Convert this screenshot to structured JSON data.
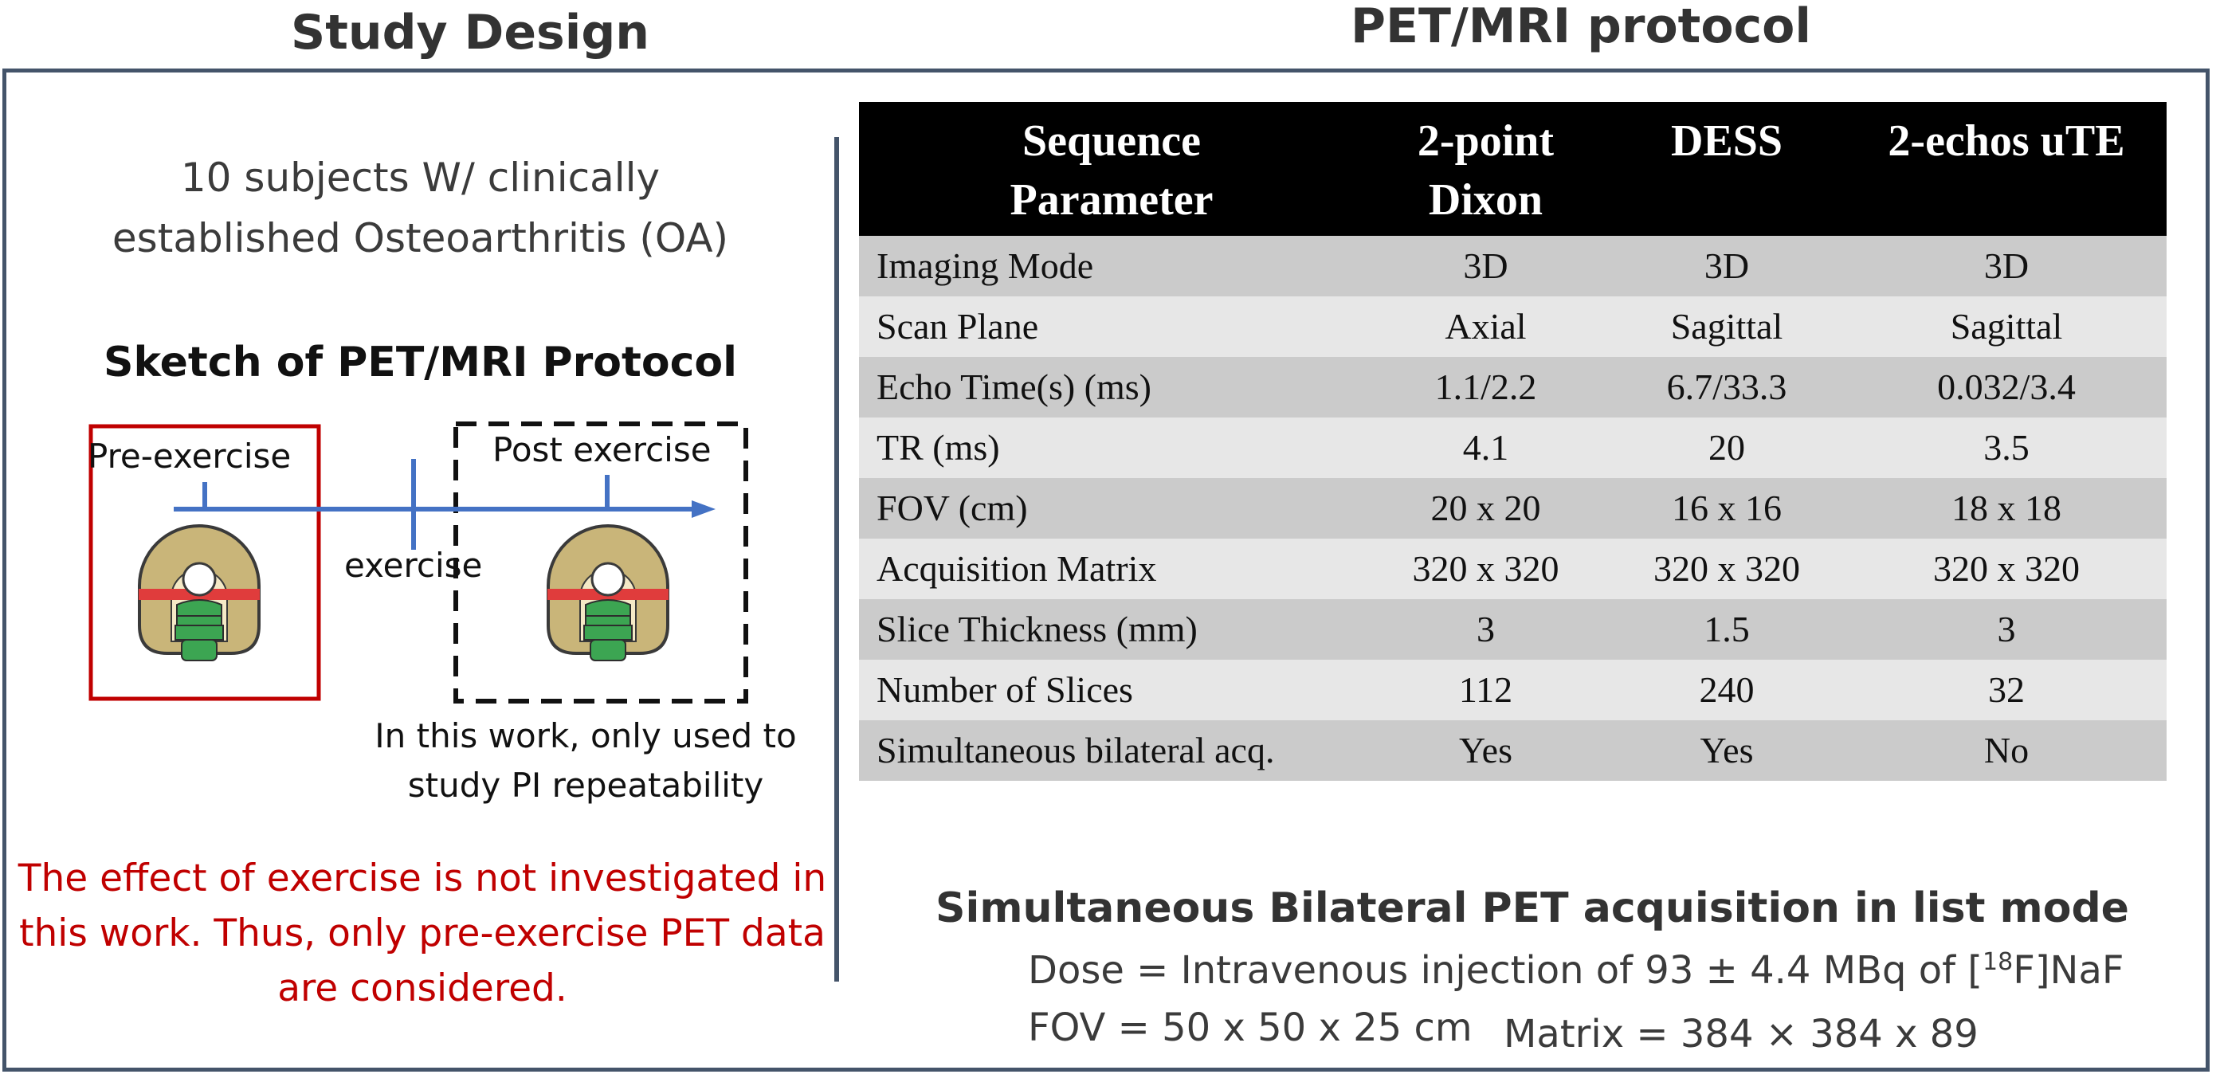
{
  "left_panel": {
    "heading": "Study Design",
    "subjects_line1": "10 subjects W/ clinically",
    "subjects_line2": "established Osteoarthritis (OA)",
    "sketch_title": "Sketch of PET/MRI Protocol",
    "pre_label": "Pre-exercise",
    "post_label": "Post exercise",
    "exercise_label": "exercise",
    "note_line1": "In this work, only used to",
    "note_line2": "study PI repeatability",
    "warning_line1": "The effect of exercise is not investigated in",
    "warning_line2": "this work. Thus, only pre-exercise PET data",
    "warning_line3": "are considered."
  },
  "right_panel": {
    "heading": "PET/MRI protocol",
    "table": {
      "headers": [
        [
          "Sequence",
          "Parameter"
        ],
        [
          "2-point",
          "Dixon"
        ],
        [
          "DESS"
        ],
        [
          "2-echos uTE"
        ]
      ],
      "rows": [
        [
          "Imaging Mode",
          "3D",
          "3D",
          "3D"
        ],
        [
          "Scan Plane",
          "Axial",
          "Sagittal",
          "Sagittal"
        ],
        [
          "Echo Time(s) (ms)",
          "1.1/2.2",
          "6.7/33.3",
          "0.032/3.4"
        ],
        [
          "TR (ms)",
          "4.1",
          "20",
          "3.5"
        ],
        [
          "FOV (cm)",
          "20 x 20",
          "16 x 16",
          "18 x 18"
        ],
        [
          "Acquisition Matrix",
          "320 x 320",
          "320 x 320",
          "320 x 320"
        ],
        [
          "Slice Thickness (mm)",
          "3",
          "1.5",
          "3"
        ],
        [
          "Number of Slices",
          "112",
          "240",
          "32"
        ],
        [
          "Simultaneous bilateral acq.",
          "Yes",
          "Yes",
          "No"
        ]
      ]
    },
    "pet_title": "Simultaneous Bilateral PET acquisition in list mode",
    "dose_prefix": "Dose = Intravenous injection of 93 ± 4.4 MBq of [",
    "dose_sup": "18",
    "dose_suffix": "F]NaF",
    "fov": "FOV =  50 x 50 x 25 cm",
    "matrix": "Matrix = 384 × 384 x 89"
  },
  "colors": {
    "frame": "#44546A",
    "pre_box": "#C00000",
    "arrow": "#4472C4",
    "warning_text": "#C00000",
    "table_header_bg": "#000000",
    "row_dark": "#CBCBCB",
    "row_light": "#E7E7E7",
    "scanner_body": "#C9B579",
    "scanner_red": "#E03C3C",
    "patient_green": "#3CA552"
  },
  "icons": [
    "pet-mri-scanner-icon"
  ]
}
